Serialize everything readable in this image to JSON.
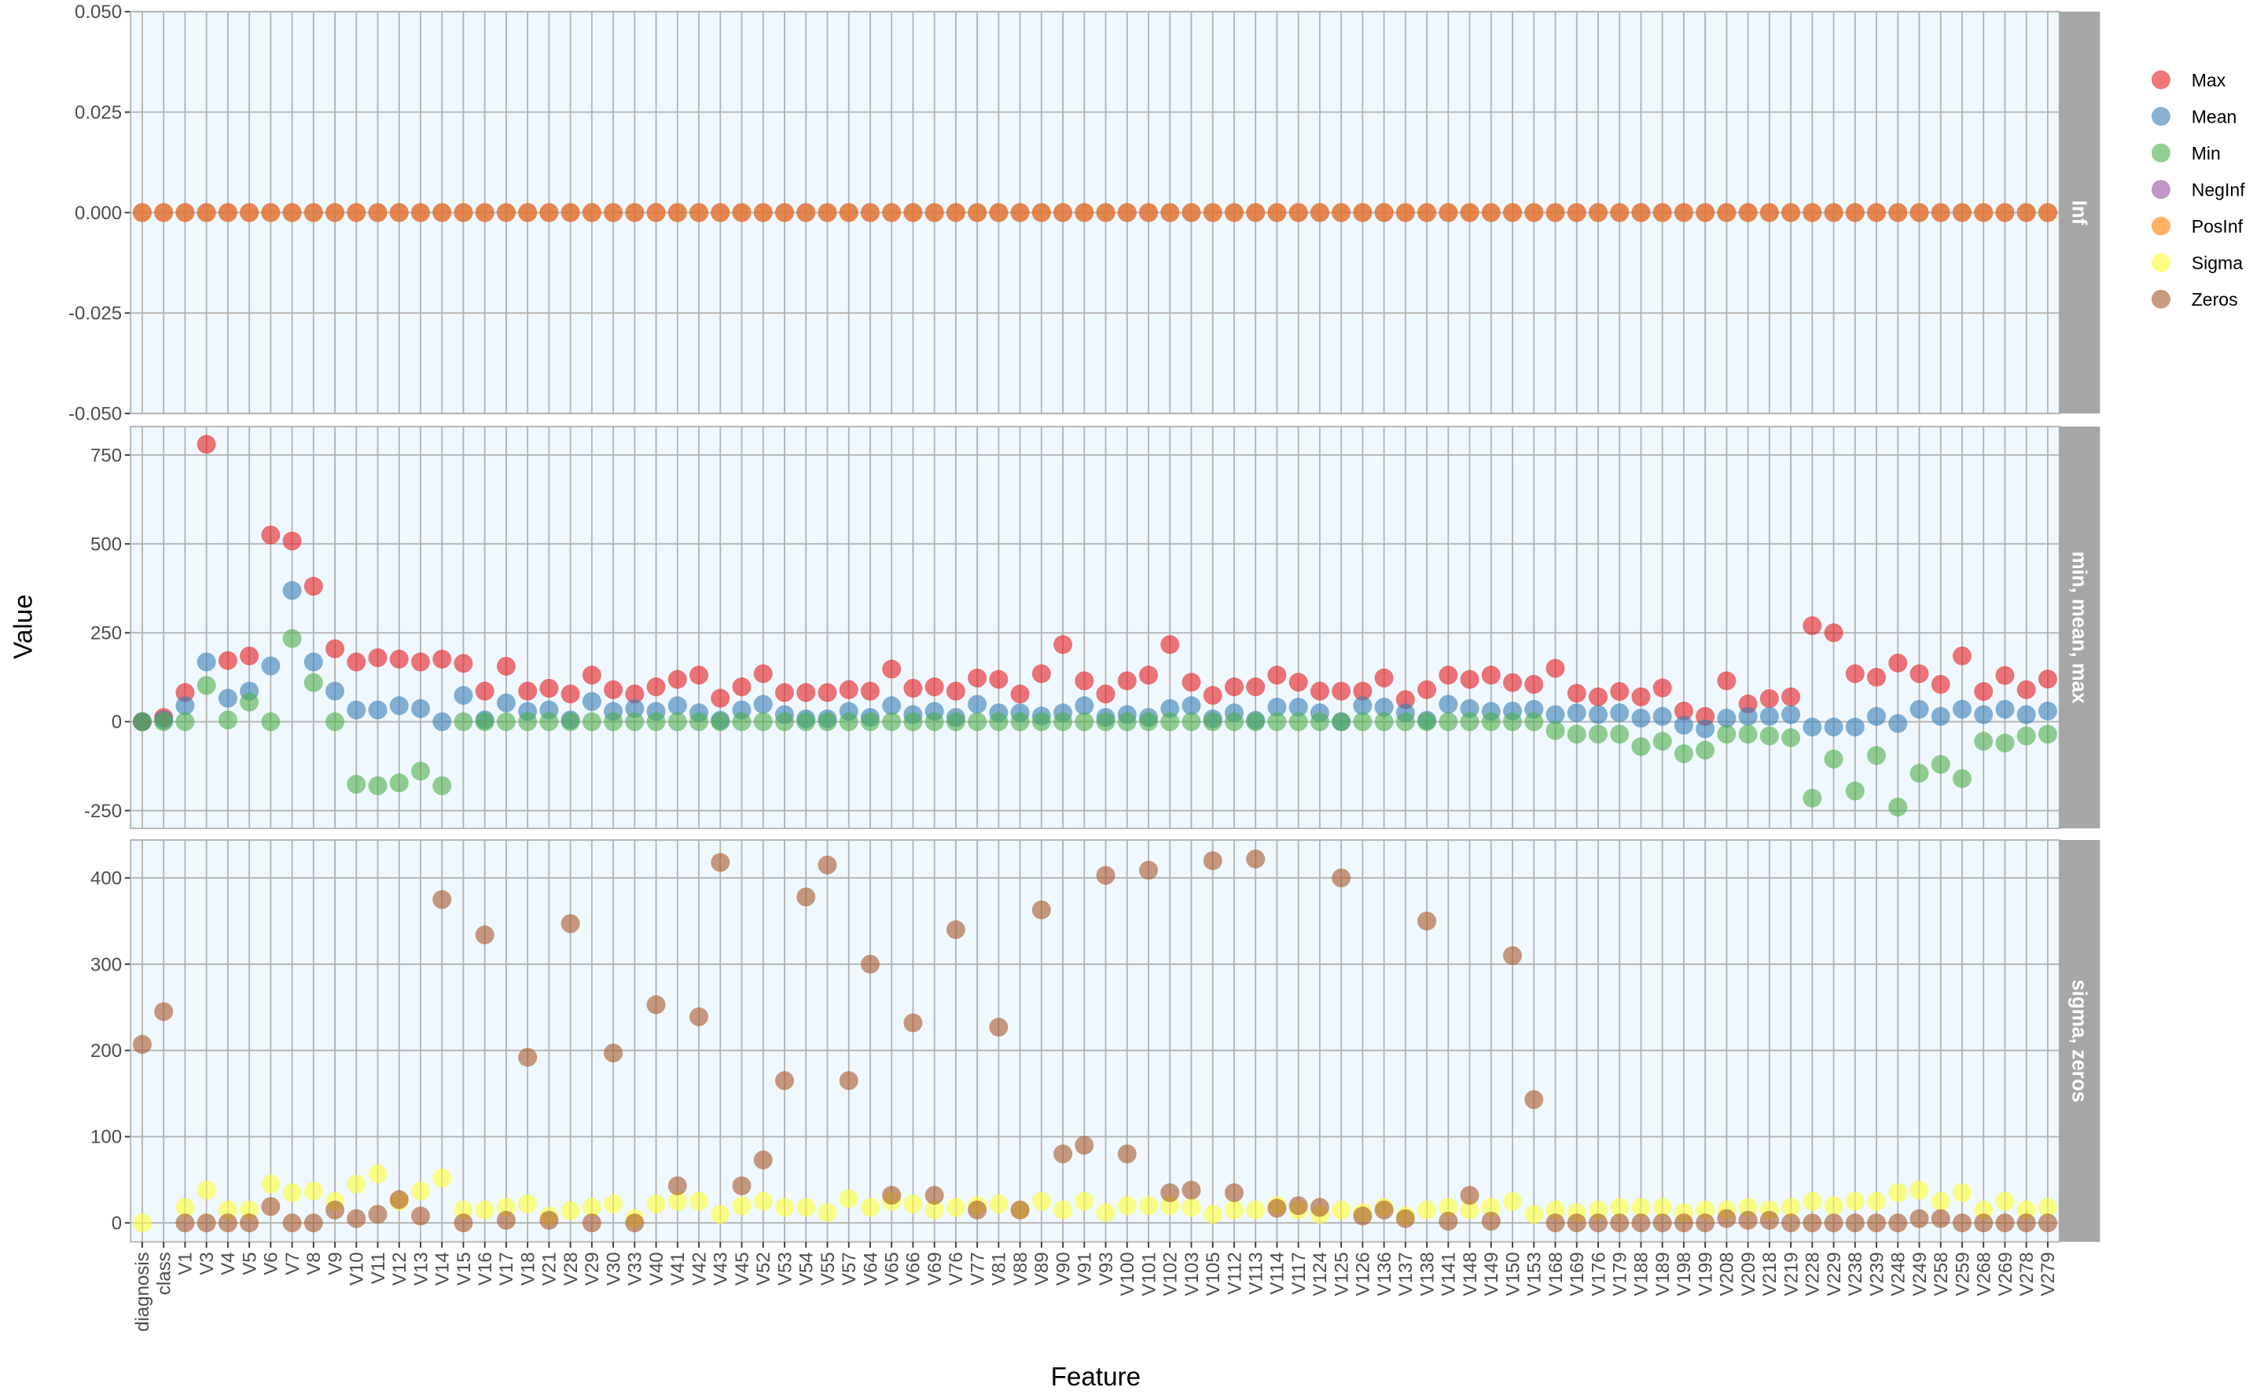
{
  "chart_data": {
    "type": "scatter",
    "x_label": "Feature",
    "y_label": "Value",
    "categories": [
      "diagnosis",
      "class",
      "V1",
      "V3",
      "V4",
      "V5",
      "V6",
      "V7",
      "V8",
      "V9",
      "V10",
      "V11",
      "V12",
      "V13",
      "V14",
      "V15",
      "V16",
      "V17",
      "V18",
      "V21",
      "V28",
      "V29",
      "V30",
      "V33",
      "V40",
      "V41",
      "V42",
      "V43",
      "V45",
      "V52",
      "V53",
      "V54",
      "V55",
      "V57",
      "V64",
      "V65",
      "V66",
      "V69",
      "V76",
      "V77",
      "V81",
      "V88",
      "V89",
      "V90",
      "V91",
      "V93",
      "V100",
      "V101",
      "V102",
      "V103",
      "V105",
      "V112",
      "V113",
      "V114",
      "V117",
      "V124",
      "V125",
      "V126",
      "V136",
      "V137",
      "V138",
      "V141",
      "V148",
      "V149",
      "V150",
      "V153",
      "V168",
      "V169",
      "V176",
      "V179",
      "V188",
      "V189",
      "V198",
      "V199",
      "V208",
      "V209",
      "V218",
      "V219",
      "V228",
      "V229",
      "V238",
      "V239",
      "V248",
      "V249",
      "V258",
      "V259",
      "V268",
      "V269",
      "V278",
      "V279"
    ],
    "grid": true,
    "legend_position": "right",
    "facets": [
      {
        "label": "Inf",
        "ylim": [
          -0.05,
          0.05
        ],
        "yticks": [
          {
            "value": 0.05,
            "label": "0.050"
          },
          {
            "value": 0.025,
            "label": "0.025"
          },
          {
            "value": 0,
            "label": "0.000"
          },
          {
            "value": -0.025,
            "label": "-0.025"
          },
          {
            "value": -0.05,
            "label": "-0.050"
          }
        ],
        "series": [
          {
            "name": "NegInf",
            "color": "#984ea3",
            "values": [
              0,
              0,
              0,
              0,
              0,
              0,
              0,
              0,
              0,
              0,
              0,
              0,
              0,
              0,
              0,
              0,
              0,
              0,
              0,
              0,
              0,
              0,
              0,
              0,
              0,
              0,
              0,
              0,
              0,
              0,
              0,
              0,
              0,
              0,
              0,
              0,
              0,
              0,
              0,
              0,
              0,
              0,
              0,
              0,
              0,
              0,
              0,
              0,
              0,
              0,
              0,
              0,
              0,
              0,
              0,
              0,
              0,
              0,
              0,
              0,
              0,
              0,
              0,
              0,
              0,
              0,
              0,
              0,
              0,
              0,
              0,
              0,
              0,
              0,
              0,
              0,
              0,
              0,
              0,
              0,
              0,
              0,
              0,
              0,
              0,
              0,
              0,
              0,
              0,
              0
            ]
          },
          {
            "name": "PosInf",
            "color": "#ff7f00",
            "values": [
              0,
              0,
              0,
              0,
              0,
              0,
              0,
              0,
              0,
              0,
              0,
              0,
              0,
              0,
              0,
              0,
              0,
              0,
              0,
              0,
              0,
              0,
              0,
              0,
              0,
              0,
              0,
              0,
              0,
              0,
              0,
              0,
              0,
              0,
              0,
              0,
              0,
              0,
              0,
              0,
              0,
              0,
              0,
              0,
              0,
              0,
              0,
              0,
              0,
              0,
              0,
              0,
              0,
              0,
              0,
              0,
              0,
              0,
              0,
              0,
              0,
              0,
              0,
              0,
              0,
              0,
              0,
              0,
              0,
              0,
              0,
              0,
              0,
              0,
              0,
              0,
              0,
              0,
              0,
              0,
              0,
              0,
              0,
              0,
              0,
              0,
              0,
              0,
              0,
              0
            ]
          }
        ]
      },
      {
        "label": "min, mean, max",
        "ylim": [
          -300,
          830
        ],
        "yticks": [
          750,
          500,
          250,
          0,
          -250
        ],
        "series": [
          {
            "name": "Max",
            "color": "#e41a1c",
            "values": [
              0,
              12,
              82,
              780,
              172,
              185,
              525,
              508,
              381,
              205,
              168,
              180,
              176,
              168,
              176,
              164,
              86,
              156,
              86,
              94,
              78,
              131,
              90,
              78,
              98,
              119,
              131,
              66,
              98,
              135,
              82,
              82,
              82,
              90,
              86,
              148,
              94,
              98,
              86,
              123,
              119,
              78,
              135,
              217,
              115,
              78,
              115,
              131,
              217,
              111,
              74,
              98,
              98,
              131,
              111,
              86,
              86,
              86,
              123,
              62,
              90,
              131,
              119,
              131,
              110,
              105,
              150,
              80,
              70,
              85,
              70,
              95,
              30,
              15,
              115,
              50,
              65,
              70,
              270,
              250,
              135,
              125,
              165,
              135,
              105,
              185,
              85,
              130,
              90,
              120
            ]
          },
          {
            "name": "Mean",
            "color": "#377eb8",
            "values": [
              0,
              5,
              45,
              168,
              66,
              86,
              157,
              369,
              168,
              86,
              33,
              33,
              45,
              37,
              0,
              74,
              5,
              53,
              29,
              33,
              5,
              57,
              29,
              37,
              29,
              45,
              25,
              4,
              33,
              49,
              20,
              8,
              8,
              29,
              12,
              45,
              20,
              29,
              12,
              49,
              25,
              25,
              16,
              25,
              45,
              12,
              20,
              12,
              37,
              45,
              8,
              25,
              4,
              41,
              41,
              25,
              0,
              45,
              41,
              25,
              4,
              49,
              37,
              29,
              30,
              35,
              20,
              25,
              20,
              25,
              10,
              15,
              -10,
              -20,
              10,
              15,
              15,
              20,
              -15,
              -15,
              -15,
              15,
              -5,
              35,
              15,
              35,
              20,
              35,
              20,
              30
            ]
          },
          {
            "name": "Min",
            "color": "#4daf4a",
            "values": [
              0,
              0,
              0,
              102,
              5,
              55,
              0,
              234,
              110,
              0,
              -176,
              -180,
              -172,
              -139,
              -180,
              0,
              0,
              0,
              0,
              0,
              0,
              0,
              0,
              0,
              0,
              0,
              0,
              0,
              0,
              0,
              0,
              0,
              0,
              0,
              0,
              0,
              0,
              0,
              0,
              0,
              0,
              0,
              0,
              0,
              0,
              0,
              0,
              0,
              0,
              0,
              0,
              0,
              0,
              0,
              0,
              0,
              0,
              0,
              0,
              0,
              0,
              0,
              0,
              0,
              0,
              0,
              -25,
              -35,
              -35,
              -35,
              -70,
              -55,
              -90,
              -80,
              -35,
              -35,
              -40,
              -45,
              -215,
              -105,
              -195,
              -95,
              -240,
              -145,
              -120,
              -160,
              -55,
              -60,
              -40,
              -35
            ]
          }
        ]
      },
      {
        "label": "sigma, zeros",
        "ylim": [
          -22,
          444
        ],
        "yticks": [
          400,
          300,
          200,
          100,
          0
        ],
        "series": [
          {
            "name": "Sigma",
            "color": "#ffff33",
            "values": [
              0,
              null,
              18,
              38,
              15,
              15,
              45,
              35,
              37,
              25,
              45,
              57,
              25,
              37,
              52,
              15,
              15,
              18,
              22,
              8,
              14,
              18,
              22,
              5,
              22,
              25,
              25,
              10,
              20,
              25,
              18,
              18,
              12,
              28,
              18,
              25,
              22,
              15,
              18,
              20,
              22,
              15,
              25,
              15,
              25,
              12,
              20,
              20,
              20,
              18,
              10,
              15,
              15,
              20,
              15,
              10,
              15,
              12,
              18,
              8,
              15,
              18,
              15,
              18,
              25,
              10,
              15,
              12,
              15,
              18,
              18,
              18,
              12,
              15,
              15,
              18,
              15,
              18,
              25,
              20,
              25,
              25,
              35,
              38,
              25,
              35,
              15,
              25,
              15,
              18
            ]
          },
          {
            "name": "Zeros",
            "color": "#a65628",
            "values": [
              207,
              245,
              0,
              0,
              0,
              0,
              19,
              0,
              0,
              15,
              5,
              10,
              27,
              8,
              375,
              0,
              334,
              3,
              192,
              3,
              347,
              0,
              197,
              0,
              253,
              43,
              239,
              418,
              43,
              73,
              165,
              378,
              415,
              165,
              300,
              32,
              232,
              32,
              340,
              15,
              227,
              15,
              363,
              80,
              90,
              403,
              80,
              409,
              35,
              38,
              420,
              35,
              422,
              17,
              20,
              18,
              400,
              8,
              15,
              5,
              350,
              2,
              32,
              2,
              310,
              143,
              0,
              0,
              0,
              0,
              0,
              0,
              0,
              0,
              5,
              3,
              3,
              0,
              0,
              0,
              0,
              0,
              0,
              5,
              5,
              0,
              0,
              0,
              0,
              0
            ]
          }
        ]
      }
    ]
  }
}
